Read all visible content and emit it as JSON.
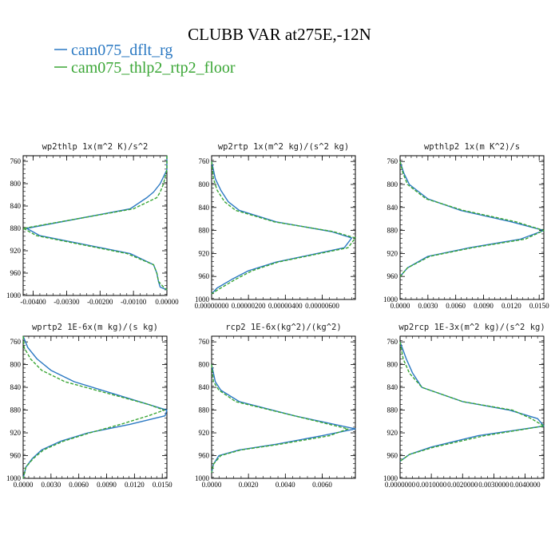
{
  "figure": {
    "title": "CLUBB VAR at275E,-12N",
    "legend": [
      {
        "name": "cam075_dflt_rg",
        "color": "#2a78c2"
      },
      {
        "name": "cam075_thlp2_rtp2_floor",
        "color": "#3aa635"
      }
    ]
  },
  "chart_data": [
    {
      "type": "line",
      "title": "wp2thlp  1x(m^2 K)/s^2",
      "xlim": [
        -0.0043,
        0.0
      ],
      "ylim": [
        1000,
        750
      ],
      "xticks": [
        -0.004,
        -0.003,
        -0.002,
        -0.001,
        0.0
      ],
      "xtick_labels": [
        "-0.00400",
        "-0.00300",
        "-0.00200",
        "-0.00100",
        "0.00000"
      ],
      "yticks": [
        760,
        800,
        840,
        880,
        920,
        960,
        1000
      ],
      "ytick_labels": [
        "760",
        "800",
        "840",
        "880",
        "920",
        "960",
        "1000"
      ],
      "series": [
        {
          "name": "cam075_dflt_rg",
          "y": [
            750,
            775,
            800,
            815,
            825,
            845,
            880,
            883,
            893,
            925,
            945,
            960,
            975,
            985,
            990
          ],
          "x": [
            0,
            0,
            -0.0002,
            -0.0004,
            -0.0006,
            -0.0011,
            -0.0042,
            -0.0041,
            -0.0038,
            -0.0011,
            -0.0004,
            -0.0003,
            -0.00025,
            -0.0002,
            0
          ]
        },
        {
          "name": "cam075_thlp2_rtp2_floor",
          "y": [
            750,
            775,
            800,
            815,
            825,
            845,
            880,
            883,
            893,
            925,
            945,
            960,
            975,
            985,
            990
          ],
          "x": [
            0,
            0,
            -0.0001,
            -0.0002,
            -0.0003,
            -0.001,
            -0.0043,
            -0.0042,
            -0.0039,
            -0.0012,
            -0.0004,
            -0.0003,
            -0.00025,
            -0.0001,
            0
          ]
        }
      ]
    },
    {
      "type": "line",
      "title": "wp2rtp  1x(m^2 kg)/(s^2 kg)",
      "xlim": [
        0.0,
        7.8e-06
      ],
      "ylim": [
        1000,
        750
      ],
      "xticks": [
        0,
        2e-06,
        4e-06,
        6e-06
      ],
      "xtick_labels": [
        "0.00000000",
        "0.00000200",
        "0.00000400",
        "0.00000600"
      ],
      "yticks": [
        760,
        800,
        840,
        880,
        920,
        960,
        1000
      ],
      "ytick_labels": [
        "760",
        "800",
        "840",
        "880",
        "920",
        "960",
        "1000"
      ],
      "series": [
        {
          "name": "cam075_dflt_rg",
          "y": [
            760,
            790,
            810,
            830,
            845,
            865,
            882,
            893,
            910,
            935,
            950,
            965,
            980,
            990
          ],
          "x": [
            0,
            2e-07,
            5e-07,
            9e-07,
            1.5e-06,
            3.5e-06,
            6.5e-06,
            7.6e-06,
            7.2e-06,
            3.5e-06,
            2e-06,
            1.1e-06,
            3e-07,
            0
          ]
        },
        {
          "name": "cam075_thlp2_rtp2_floor",
          "y": [
            760,
            790,
            810,
            830,
            845,
            865,
            882,
            893,
            910,
            935,
            950,
            965,
            980,
            990
          ],
          "x": [
            0,
            1e-07,
            3e-07,
            7e-07,
            1.3e-06,
            3.4e-06,
            6.6e-06,
            7.8e-06,
            7.4e-06,
            3.6e-06,
            2.2e-06,
            1.3e-06,
            5e-07,
            0
          ]
        }
      ]
    },
    {
      "type": "line",
      "title": "wpthlp2  1x(m K^2)/s",
      "xlim": [
        0.0,
        0.0155
      ],
      "ylim": [
        1000,
        750
      ],
      "xticks": [
        0,
        0.003,
        0.006,
        0.009,
        0.012,
        0.015
      ],
      "xtick_labels": [
        "0.0000",
        "0.0030",
        "0.0060",
        "0.0090",
        "0.0120",
        "0.0150"
      ],
      "yticks": [
        760,
        800,
        840,
        880,
        920,
        960,
        1000
      ],
      "ytick_labels": [
        "760",
        "800",
        "840",
        "880",
        "920",
        "960",
        "1000"
      ],
      "series": [
        {
          "name": "cam075_dflt_rg",
          "y": [
            760,
            780,
            800,
            825,
            845,
            865,
            880,
            895,
            910,
            925,
            945,
            960
          ],
          "x": [
            0,
            0.0004,
            0.001,
            0.003,
            0.0065,
            0.012,
            0.0155,
            0.013,
            0.0075,
            0.003,
            0.0008,
            0
          ]
        },
        {
          "name": "cam075_thlp2_rtp2_floor",
          "y": [
            760,
            780,
            800,
            825,
            845,
            865,
            880,
            895,
            910,
            925,
            945,
            960
          ],
          "x": [
            0,
            0.0003,
            0.0008,
            0.0028,
            0.0068,
            0.0125,
            0.0155,
            0.0135,
            0.0078,
            0.0032,
            0.0008,
            0
          ]
        }
      ]
    },
    {
      "type": "line",
      "title": "wprtp2  1E-6x(m kg)/(s kg)",
      "xlim": [
        0.0,
        0.0155
      ],
      "ylim": [
        1000,
        750
      ],
      "xticks": [
        0,
        0.003,
        0.006,
        0.009,
        0.012,
        0.015
      ],
      "xtick_labels": [
        "0.0000",
        "0.0030",
        "0.0060",
        "0.0090",
        "0.0120",
        "0.0150"
      ],
      "yticks": [
        760,
        800,
        840,
        880,
        920,
        960,
        1000
      ],
      "ytick_labels": [
        "760",
        "800",
        "840",
        "880",
        "920",
        "960",
        "1000"
      ],
      "series": [
        {
          "name": "cam075_dflt_rg",
          "y": [
            750,
            770,
            790,
            810,
            830,
            850,
            870,
            880,
            890,
            905,
            920,
            935,
            950,
            965,
            980,
            1000
          ],
          "x": [
            0,
            0.0005,
            0.0015,
            0.003,
            0.0055,
            0.0095,
            0.0135,
            0.0155,
            0.0153,
            0.0115,
            0.007,
            0.004,
            0.002,
            0.001,
            0.0003,
            0
          ]
        },
        {
          "name": "cam075_thlp2_rtp2_floor",
          "y": [
            750,
            770,
            790,
            810,
            830,
            850,
            870,
            880,
            890,
            905,
            920,
            935,
            950,
            965,
            980,
            1000
          ],
          "x": [
            0,
            0.0001,
            0.0008,
            0.002,
            0.0045,
            0.009,
            0.0135,
            0.0152,
            0.0135,
            0.0105,
            0.0072,
            0.0043,
            0.0022,
            0.0011,
            0.0003,
            0
          ]
        }
      ]
    },
    {
      "type": "line",
      "title": "rcp2  1E-6x(kg^2)/(kg^2)",
      "xlim": [
        0.0,
        0.0078
      ],
      "ylim": [
        1000,
        750
      ],
      "xticks": [
        0,
        0.002,
        0.004,
        0.006
      ],
      "xtick_labels": [
        "0.0000",
        "0.0020",
        "0.0040",
        "0.0060"
      ],
      "yticks": [
        760,
        800,
        840,
        880,
        920,
        960,
        1000
      ],
      "ytick_labels": [
        "760",
        "800",
        "840",
        "880",
        "920",
        "960",
        "1000"
      ],
      "series": [
        {
          "name": "cam075_dflt_rg",
          "y": [
            800,
            830,
            845,
            865,
            890,
            913,
            925,
            940,
            950,
            960,
            975,
            990
          ],
          "x": [
            0,
            0.0002,
            0.0005,
            0.0015,
            0.0045,
            0.0078,
            0.006,
            0.0035,
            0.0015,
            0.0004,
            0.0001,
            0
          ]
        },
        {
          "name": "cam075_thlp2_rtp2_floor",
          "y": [
            800,
            830,
            845,
            865,
            890,
            913,
            925,
            940,
            950,
            960,
            975,
            990
          ],
          "x": [
            0,
            0.0001,
            0.0004,
            0.0013,
            0.0045,
            0.0074,
            0.0064,
            0.0037,
            0.0016,
            0.0005,
            0.0001,
            0
          ]
        }
      ]
    },
    {
      "type": "line",
      "title": "wp2rcp  1E-3x(m^2 kg)/(s^2 kg)",
      "xlim": [
        0.0,
        0.0046
      ],
      "ylim": [
        1000,
        750
      ],
      "xticks": [
        0,
        0.001,
        0.002,
        0.003,
        0.004
      ],
      "xtick_labels": [
        "0.0000000",
        "0.0010000",
        "0.0020000",
        "0.0030000",
        "0.0040000"
      ],
      "yticks": [
        760,
        800,
        840,
        880,
        920,
        960,
        1000
      ],
      "ytick_labels": [
        "760",
        "800",
        "840",
        "880",
        "920",
        "960",
        "1000"
      ],
      "series": [
        {
          "name": "cam075_dflt_rg",
          "y": [
            760,
            790,
            815,
            840,
            865,
            880,
            895,
            908,
            925,
            945,
            958,
            970
          ],
          "x": [
            0,
            0.0002,
            0.0004,
            0.0007,
            0.002,
            0.0035,
            0.0044,
            0.0046,
            0.0025,
            0.001,
            0.0003,
            0
          ]
        },
        {
          "name": "cam075_thlp2_rtp2_floor",
          "y": [
            760,
            790,
            815,
            840,
            865,
            880,
            895,
            908,
            925,
            945,
            958,
            970
          ],
          "x": [
            0,
            0.0001,
            0.0003,
            0.0007,
            0.002,
            0.0036,
            0.0042,
            0.0046,
            0.0027,
            0.0011,
            0.0003,
            0
          ]
        }
      ]
    }
  ]
}
